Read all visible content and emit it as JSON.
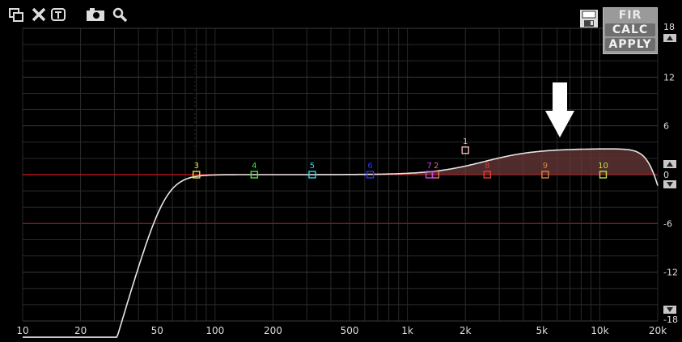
{
  "toolbar": {
    "icons": [
      "restore-icon",
      "close-x-icon",
      "text-box-icon",
      "camera-icon",
      "magnifier-icon"
    ]
  },
  "fir_panel": {
    "fir_label": "FIR",
    "calc_label": "CALC",
    "apply_label": "APPLY"
  },
  "colors": {
    "background": "#000000",
    "grid": "#2a2a2a",
    "zero_line": "#d01818",
    "curve": "#e6e6e6",
    "fill": "#6a3a3a",
    "arrow": "#ffffff"
  },
  "axes": {
    "x_ticks": [
      {
        "label": "10",
        "freq": 10
      },
      {
        "label": "20",
        "freq": 20
      },
      {
        "label": "50",
        "freq": 50
      },
      {
        "label": "100",
        "freq": 100
      },
      {
        "label": "200",
        "freq": 200
      },
      {
        "label": "500",
        "freq": 500
      },
      {
        "label": "1k",
        "freq": 1000
      },
      {
        "label": "2k",
        "freq": 2000
      },
      {
        "label": "5k",
        "freq": 5000
      },
      {
        "label": "10k",
        "freq": 10000
      },
      {
        "label": "20k",
        "freq": 20000
      }
    ],
    "y_ticks": [
      {
        "label": "18",
        "db": 18
      },
      {
        "label": "12",
        "db": 12
      },
      {
        "label": "6",
        "db": 6
      },
      {
        "label": "0",
        "db": 0
      },
      {
        "label": "-6",
        "db": -6
      },
      {
        "label": "-12",
        "db": -12
      },
      {
        "label": "-18",
        "db": -18
      }
    ],
    "x_range": [
      10,
      20000
    ],
    "y_range": [
      -18,
      18
    ],
    "limit_line_db": -6
  },
  "filters": [
    {
      "id": "1",
      "freq": 2000,
      "gain": 3,
      "color": "#f2b8b8"
    },
    {
      "id": "2",
      "freq": 1400,
      "gain": 0,
      "color": "#e86e6e"
    },
    {
      "id": "3",
      "freq": 80,
      "gain": 0,
      "color": "#e8e23a"
    },
    {
      "id": "4",
      "freq": 160,
      "gain": 0,
      "color": "#3ee83e"
    },
    {
      "id": "5",
      "freq": 320,
      "gain": 0,
      "color": "#32d6e8"
    },
    {
      "id": "6",
      "freq": 640,
      "gain": 0,
      "color": "#2a38e8"
    },
    {
      "id": "7",
      "freq": 1300,
      "gain": 0,
      "color": "#c84ae8"
    },
    {
      "id": "8",
      "freq": 2600,
      "gain": 0,
      "color": "#ea3a2a"
    },
    {
      "id": "9",
      "freq": 5200,
      "gain": 0,
      "color": "#d8863a"
    },
    {
      "id": "10",
      "freq": 10400,
      "gain": 0,
      "color": "#b8e24a"
    }
  ],
  "curve": {
    "highpass_freq": 55,
    "shelf_gain_db": 3.2,
    "shelf_freq": 2000,
    "lowpass_freq": 19000
  }
}
